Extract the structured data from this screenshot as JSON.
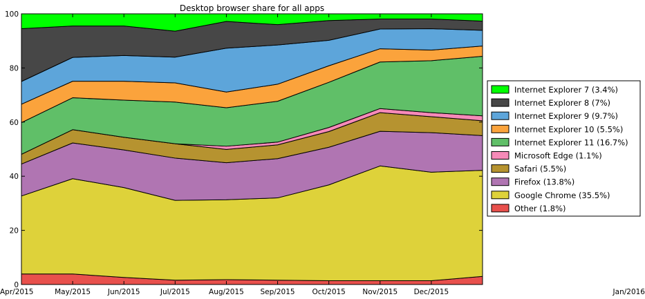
{
  "chart_data": {
    "type": "area",
    "stacked": true,
    "title": "Desktop browser share for all apps",
    "xlabel": "",
    "ylabel": "",
    "categories": [
      "Apr/2015",
      "May/2015",
      "Jun/2015",
      "Jul/2015",
      "Aug/2015",
      "Sep/2015",
      "Oct/2015",
      "Nov/2015",
      "Dec/2015",
      "Jan/2016"
    ],
    "ylim": [
      0,
      100
    ],
    "yticks": [
      0,
      20,
      40,
      60,
      80,
      100
    ],
    "grid": false,
    "legend_position": "right",
    "series": [
      {
        "key": "other",
        "name": "Other",
        "legend_label": "Other (1.8%)",
        "color": "#e8504c",
        "values": [
          3.9,
          3.9,
          2.6,
          1.6,
          1.8,
          1.6,
          1.4,
          1.4,
          1.4,
          3.0
        ]
      },
      {
        "key": "chrome",
        "name": "Google Chrome",
        "legend_label": "Google Chrome (35.5%)",
        "color": "#ded23a",
        "values": [
          28.8,
          35.2,
          33.2,
          29.5,
          29.5,
          30.4,
          35.4,
          42.4,
          40.1,
          39.2
        ]
      },
      {
        "key": "firefox",
        "name": "Firefox",
        "legend_label": "Firefox (13.8%)",
        "color": "#b075b2",
        "values": [
          11.8,
          13.2,
          13.9,
          15.6,
          13.7,
          14.5,
          13.9,
          12.8,
          14.6,
          12.8
        ]
      },
      {
        "key": "safari",
        "name": "Safari",
        "legend_label": "Safari (5.5%)",
        "color": "#b69330",
        "values": [
          3.6,
          4.9,
          4.7,
          5.3,
          4.9,
          5.1,
          5.8,
          6.9,
          5.9,
          5.5
        ]
      },
      {
        "key": "edge",
        "name": "Microsoft Edge",
        "legend_label": "Microsoft Edge (1.1%)",
        "color": "#f68ab8",
        "values": [
          0.0,
          0.0,
          0.0,
          0.0,
          1.2,
          1.0,
          1.5,
          1.5,
          1.5,
          1.8
        ]
      },
      {
        "key": "ie11",
        "name": "Internet Explorer 11",
        "legend_label": "Internet Explorer 11 (16.7%)",
        "color": "#60bf68",
        "values": [
          11.7,
          11.8,
          13.7,
          15.4,
          14.2,
          15.1,
          16.7,
          17.2,
          19.2,
          22.0
        ]
      },
      {
        "key": "ie10",
        "name": "Internet Explorer 10",
        "legend_label": "Internet Explorer 10 (5.5%)",
        "color": "#fba33c",
        "values": [
          6.8,
          6.1,
          7.0,
          7.1,
          5.8,
          6.3,
          6.1,
          4.9,
          3.9,
          3.8
        ]
      },
      {
        "key": "ie9",
        "name": "Internet Explorer 9",
        "legend_label": "Internet Explorer 9 (9.7%)",
        "color": "#5da5da",
        "values": [
          8.4,
          8.8,
          9.5,
          9.5,
          16.2,
          14.5,
          9.4,
          7.3,
          7.9,
          5.8
        ]
      },
      {
        "key": "ie8",
        "name": "Internet Explorer 8",
        "legend_label": "Internet Explorer 8 (7%)",
        "color": "#474747",
        "values": [
          19.5,
          11.6,
          10.9,
          9.6,
          9.9,
          7.5,
          7.3,
          3.7,
          3.6,
          3.4
        ]
      },
      {
        "key": "ie7",
        "name": "Internet Explorer 7",
        "legend_label": "Internet Explorer 7 (3.4%)",
        "color": "#00ff00",
        "values": [
          5.5,
          4.5,
          4.5,
          6.4,
          2.8,
          4.0,
          2.5,
          1.9,
          1.9,
          2.7
        ]
      }
    ],
    "legend_order": [
      "ie7",
      "ie8",
      "ie9",
      "ie10",
      "ie11",
      "edge",
      "safari",
      "firefox",
      "chrome",
      "other"
    ]
  }
}
